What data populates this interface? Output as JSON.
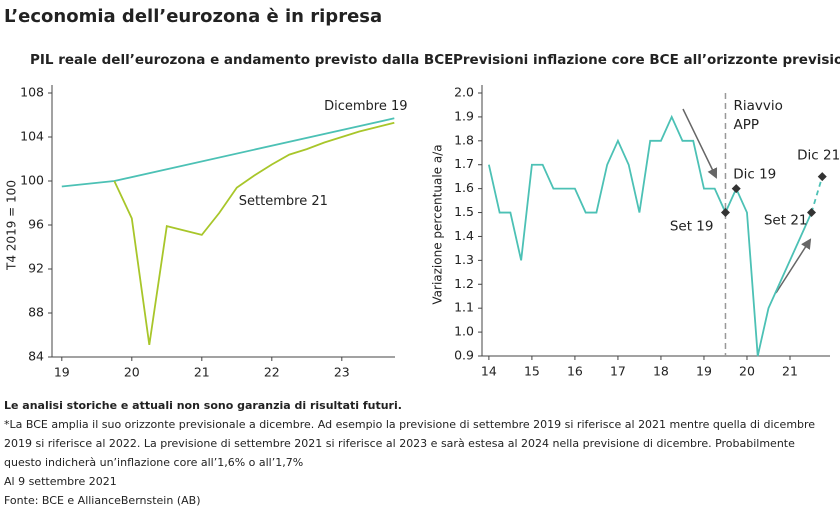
{
  "title": "L’economia dell’eurozona è in ripresa",
  "chart_data": [
    {
      "type": "line",
      "title": "PIL reale dell’eurozona e andamento previsto dalla BCE",
      "ylabel": "T4 2019 = 100",
      "xlim": [
        18.86,
        23.76
      ],
      "ylim": [
        84,
        108
      ],
      "xticks": [
        19,
        20,
        21,
        22,
        23
      ],
      "yticks": [
        84,
        88,
        92,
        96,
        100,
        104,
        108
      ],
      "series": [
        {
          "name": "Dicembre 19",
          "color": "#4cc1b5",
          "x": [
            19,
            19.75,
            23.75
          ],
          "values": [
            99.5,
            100,
            105.7
          ]
        },
        {
          "name": "Settembre 21",
          "color": "#a8c62a",
          "x": [
            19.75,
            20,
            20.25,
            20.5,
            20.75,
            21,
            21.25,
            21.5,
            21.75,
            22,
            22.25,
            22.5,
            22.75,
            23,
            23.25,
            23.5,
            23.75
          ],
          "values": [
            100,
            96.6,
            85.1,
            95.9,
            95.5,
            95.1,
            97.1,
            99.4,
            100.5,
            101.5,
            102.4,
            102.9,
            103.5,
            104,
            104.5,
            104.9,
            105.3
          ]
        }
      ]
    },
    {
      "type": "line",
      "title": "Previsioni inflazione core BCE all’orizzonte previsionale*",
      "ylabel": "Variazione percentuale a/a",
      "xlim": [
        13.84,
        21.93
      ],
      "ylim": [
        0.9,
        2.0
      ],
      "xticks": [
        14,
        15,
        16,
        17,
        18,
        19,
        20,
        21
      ],
      "yticks": [
        0.9,
        {
          "value": 1.0,
          "label": "1.0"
        },
        1.1,
        1.2,
        1.3,
        1.4,
        1.5,
        1.6,
        1.7,
        1.8,
        1.9,
        {
          "value": 2.0,
          "label": "2.0"
        }
      ],
      "series": [
        {
          "color": "#4cc1b5",
          "x": [
            14,
            14.25,
            14.5,
            14.75,
            15,
            15.25,
            15.5,
            15.75,
            16,
            16.25,
            16.5,
            16.75,
            17,
            17.25,
            17.5,
            17.75,
            18,
            18.25,
            18.5,
            18.75,
            19,
            19.25,
            19.5,
            19.75,
            20,
            20.25,
            20.5,
            20.75,
            21,
            21.25,
            21.5
          ],
          "values": [
            1.7,
            1.5,
            1.5,
            1.3,
            1.7,
            1.7,
            1.6,
            1.6,
            1.6,
            1.5,
            1.5,
            1.7,
            1.8,
            1.7,
            1.5,
            1.8,
            1.8,
            1.9,
            1.8,
            1.8,
            1.6,
            1.6,
            1.5,
            1.6,
            1.5,
            0.9,
            1.1,
            1.2,
            1.3,
            1.4,
            1.5
          ]
        },
        {
          "color": "#4cc1b5",
          "dashed": true,
          "x": [
            21.5,
            21.75
          ],
          "values": [
            1.5,
            1.65
          ]
        }
      ],
      "points": [
        {
          "label": "Set 19",
          "x": 19.5,
          "y": 1.5
        },
        {
          "label": "Dic 19",
          "x": 19.75,
          "y": 1.6
        },
        {
          "label": "Set 21",
          "x": 21.5,
          "y": 1.5
        },
        {
          "label": "Dic 21?",
          "x": 21.75,
          "y": 1.65
        }
      ],
      "vline": {
        "x": 19.5,
        "label_lines": [
          "Riavvio",
          "APP"
        ]
      }
    }
  ],
  "notes": {
    "disclaimer": "Le analisi storiche e attuali non sono garanzia di risultati futuri.",
    "footnote": "*La BCE amplia il suo orizzonte previsionale a dicembre. Ad esempio la previsione di settembre 2019 si riferisce al 2021 mentre quella di dicembre 2019 si riferisce al 2022. La previsione di settembre 2021 si riferisce al 2023 e sarà estesa al 2024 nella previsione di dicembre. Probabilmente questo indicherà un’inflazione core all’1,6% o all’1,7%",
    "date": "Al 9 settembre 2021",
    "source": "Fonte: BCE e AllianceBernstein (AB)"
  }
}
